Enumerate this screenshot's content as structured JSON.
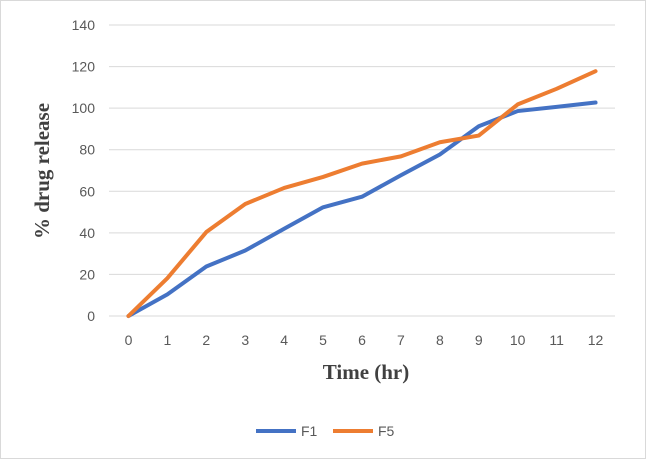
{
  "chart_data": {
    "type": "line",
    "title": "",
    "xlabel": "Time (hr)",
    "ylabel": "% drug release",
    "x": [
      0,
      1,
      2,
      3,
      4,
      5,
      6,
      7,
      8,
      9,
      10,
      11,
      12
    ],
    "ylim": [
      0,
      140
    ],
    "yticks": [
      0,
      20,
      40,
      60,
      80,
      100,
      120,
      140
    ],
    "grid": true,
    "legend_position": "bottom",
    "series": [
      {
        "name": "F1",
        "color": "#4472C4",
        "values": [
          0,
          10.4,
          23.8,
          31.5,
          42,
          52.3,
          57.4,
          67.7,
          77.7,
          91.3,
          98.6,
          100.6,
          102.7
        ]
      },
      {
        "name": "F5",
        "color": "#ED7D31",
        "values": [
          0,
          18.2,
          40.4,
          53.9,
          61.6,
          66.9,
          73.3,
          76.8,
          83.6,
          86.8,
          101.8,
          109.3,
          117.8
        ]
      }
    ]
  }
}
